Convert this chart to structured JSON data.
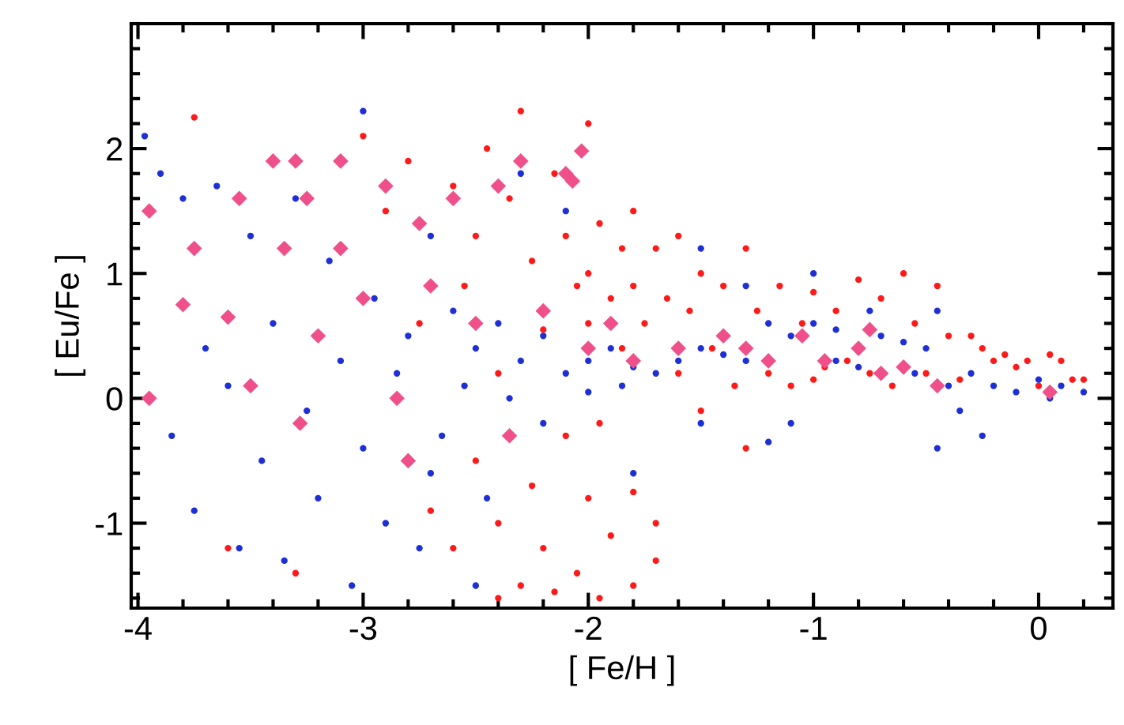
{
  "chart_data": {
    "type": "scatter",
    "xlabel": "[ Fe/H ]",
    "ylabel": "[ Eu/Fe ]",
    "xlim": [
      -4.03,
      0.33
    ],
    "ylim": [
      -1.68,
      3.0
    ],
    "xticks": [
      -4,
      -3,
      -2,
      -1,
      0
    ],
    "yticks": [
      -1,
      0,
      1,
      2
    ],
    "grid": false,
    "legend": false,
    "series": [
      {
        "color": "#ff1a1a",
        "marker": "circle",
        "x": [
          -3.75,
          -3.6,
          -3.3,
          -3.0,
          -2.9,
          -2.8,
          -2.75,
          -2.7,
          -2.6,
          -2.6,
          -2.55,
          -2.5,
          -2.5,
          -2.45,
          -2.4,
          -2.4,
          -2.35,
          -2.3,
          -2.3,
          -2.25,
          -2.25,
          -2.2,
          -2.2,
          -2.15,
          -2.1,
          -2.1,
          -2.05,
          -2.05,
          -2.0,
          -2.0,
          -2.0,
          -2.0,
          -1.95,
          -1.95,
          -1.9,
          -1.9,
          -1.85,
          -1.85,
          -1.8,
          -1.8,
          -1.8,
          -1.75,
          -1.7,
          -1.7,
          -1.65,
          -1.6,
          -1.6,
          -1.55,
          -1.5,
          -1.5,
          -1.45,
          -1.4,
          -1.35,
          -1.3,
          -1.3,
          -1.25,
          -1.2,
          -1.15,
          -1.1,
          -1.05,
          -1.0,
          -1.0,
          -0.95,
          -0.9,
          -0.85,
          -0.8,
          -0.75,
          -0.7,
          -0.65,
          -0.6,
          -0.55,
          -0.5,
          -0.45,
          -0.4,
          -0.35,
          -0.3,
          -0.25,
          -0.2,
          -0.15,
          -0.1,
          -0.05,
          0.0,
          0.05,
          0.1,
          0.15,
          0.2,
          -1.95,
          -2.15,
          -1.7,
          -1.8,
          -2.4
        ],
        "values": [
          2.25,
          -1.2,
          -1.4,
          2.1,
          1.5,
          1.9,
          0.6,
          -0.9,
          1.7,
          -1.2,
          0.9,
          1.3,
          -0.5,
          2.0,
          0.2,
          -1.0,
          1.6,
          2.3,
          -1.5,
          1.1,
          -0.7,
          0.55,
          -1.2,
          1.8,
          1.3,
          -0.3,
          0.9,
          -1.4,
          2.2,
          1.0,
          0.6,
          -0.8,
          1.4,
          -0.2,
          0.8,
          -1.1,
          1.2,
          0.4,
          1.5,
          0.9,
          -0.75,
          0.6,
          1.2,
          -1.0,
          0.8,
          1.3,
          0.2,
          0.7,
          1.0,
          -0.1,
          0.4,
          0.9,
          0.1,
          1.2,
          -0.4,
          0.7,
          0.2,
          0.9,
          0.1,
          0.6,
          0.15,
          0.85,
          0.25,
          0.7,
          0.3,
          0.95,
          0.2,
          0.8,
          0.1,
          1.0,
          0.6,
          0.2,
          0.9,
          0.5,
          0.15,
          0.5,
          0.4,
          0.3,
          0.35,
          0.25,
          0.3,
          0.1,
          0.35,
          0.3,
          0.15,
          0.15,
          -1.6,
          -1.55,
          -1.3,
          -1.5,
          -1.6
        ]
      },
      {
        "color": "#1e2fd6",
        "marker": "circle",
        "x": [
          -3.97,
          -3.9,
          -3.85,
          -3.8,
          -3.75,
          -3.7,
          -3.65,
          -3.6,
          -3.55,
          -3.5,
          -3.45,
          -3.4,
          -3.35,
          -3.3,
          -3.25,
          -3.2,
          -3.15,
          -3.1,
          -3.05,
          -3.0,
          -3.0,
          -2.95,
          -2.9,
          -2.85,
          -2.8,
          -2.75,
          -2.7,
          -2.65,
          -2.6,
          -2.55,
          -2.5,
          -2.45,
          -2.4,
          -2.35,
          -2.3,
          -2.3,
          -2.2,
          -2.2,
          -2.1,
          -2.0,
          -2.0,
          -1.9,
          -1.85,
          -1.8,
          -1.7,
          -1.6,
          -1.5,
          -1.5,
          -1.4,
          -1.3,
          -1.2,
          -1.1,
          -1.1,
          -1.0,
          -0.9,
          -0.9,
          -0.8,
          -0.75,
          -0.7,
          -0.6,
          -0.55,
          -0.5,
          -0.45,
          -0.4,
          -0.35,
          -0.3,
          -0.25,
          -0.2,
          -0.1,
          0.0,
          0.05,
          0.1,
          0.2,
          -1.5,
          -1.0,
          -0.45,
          -1.8,
          -1.3,
          -2.1,
          -1.2,
          -2.5,
          -2.7
        ],
        "values": [
          2.1,
          1.8,
          -0.3,
          1.6,
          -0.9,
          0.4,
          1.7,
          0.1,
          -1.2,
          1.3,
          -0.5,
          0.6,
          -1.3,
          1.6,
          -0.1,
          -0.8,
          1.1,
          0.3,
          -1.5,
          -0.4,
          2.3,
          0.8,
          -1.0,
          0.2,
          0.5,
          -1.2,
          1.3,
          -0.3,
          0.7,
          0.1,
          0.4,
          -0.8,
          0.6,
          0.0,
          1.8,
          0.3,
          0.5,
          -0.2,
          0.2,
          0.3,
          0.05,
          0.4,
          0.1,
          0.25,
          0.2,
          0.3,
          0.4,
          -0.2,
          0.35,
          0.3,
          0.6,
          0.5,
          -0.2,
          0.6,
          0.55,
          0.3,
          0.25,
          0.7,
          0.5,
          0.45,
          0.2,
          0.4,
          0.7,
          0.1,
          -0.1,
          0.2,
          -0.3,
          0.1,
          0.05,
          0.15,
          0.0,
          0.1,
          0.05,
          1.2,
          1.0,
          -0.4,
          -0.6,
          0.9,
          1.5,
          -0.35,
          -1.5,
          -0.6
        ]
      },
      {
        "color": "#f0508a",
        "marker": "diamond",
        "x": [
          -3.95,
          -3.95,
          -3.8,
          -3.75,
          -3.6,
          -3.55,
          -3.5,
          -3.4,
          -3.35,
          -3.3,
          -3.28,
          -3.25,
          -3.2,
          -3.1,
          -3.1,
          -3.0,
          -2.9,
          -2.85,
          -2.8,
          -2.75,
          -2.7,
          -2.6,
          -2.5,
          -2.4,
          -2.35,
          -2.3,
          -2.2,
          -2.1,
          -2.0,
          -1.9,
          -1.8,
          -1.6,
          -1.4,
          -1.2,
          -1.05,
          -0.95,
          -0.8,
          -0.7,
          -0.6,
          -0.45,
          0.05,
          -2.03,
          -2.07,
          -1.3,
          -0.75
        ],
        "values": [
          1.5,
          0.0,
          0.75,
          1.2,
          0.65,
          1.6,
          0.1,
          1.9,
          1.2,
          1.9,
          -0.2,
          1.6,
          0.5,
          1.9,
          1.2,
          0.8,
          1.7,
          0.0,
          -0.5,
          1.4,
          0.9,
          1.6,
          0.6,
          1.7,
          -0.3,
          1.9,
          0.7,
          1.8,
          0.4,
          0.6,
          0.3,
          0.4,
          0.5,
          0.3,
          0.5,
          0.3,
          0.4,
          0.2,
          0.25,
          0.1,
          0.05,
          1.98,
          1.74,
          0.4,
          0.55
        ]
      }
    ]
  }
}
